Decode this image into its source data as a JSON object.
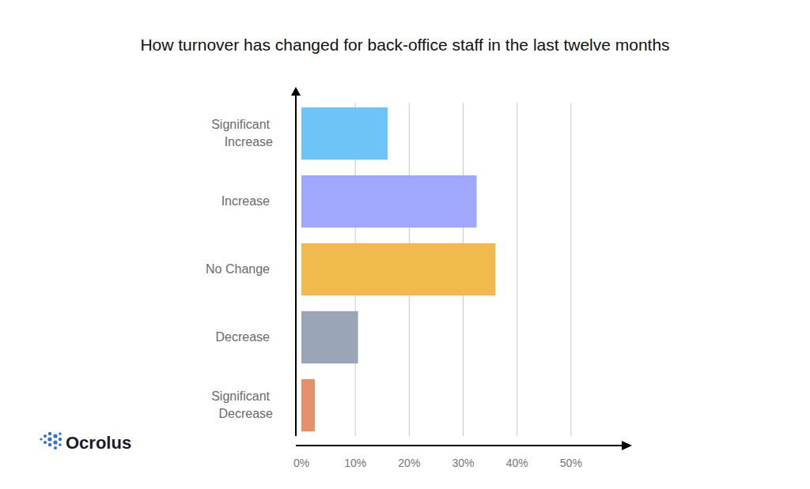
{
  "chart_data": {
    "type": "bar",
    "orientation": "horizontal",
    "title": "How turnover has changed for back-office staff in the last twelve months",
    "categories": [
      "Significant Increase",
      "Increase",
      "No Change",
      "Decrease",
      "Significant Decrease"
    ],
    "values": [
      16,
      32.5,
      36,
      10.5,
      2.5
    ],
    "colors": [
      "#6ec3f7",
      "#9fa8fc",
      "#f0bb4c",
      "#9aa5b8",
      "#e4916b"
    ],
    "xlim": [
      0,
      60
    ],
    "xticks": [
      {
        "value": 0,
        "label": "0%"
      },
      {
        "value": 10,
        "label": "10%"
      },
      {
        "value": 20,
        "label": "20%"
      },
      {
        "value": 30,
        "label": "30%"
      },
      {
        "value": 40,
        "label": "40%"
      },
      {
        "value": 50,
        "label": "50%"
      }
    ],
    "grid": true,
    "logo": "Ocrolus"
  }
}
